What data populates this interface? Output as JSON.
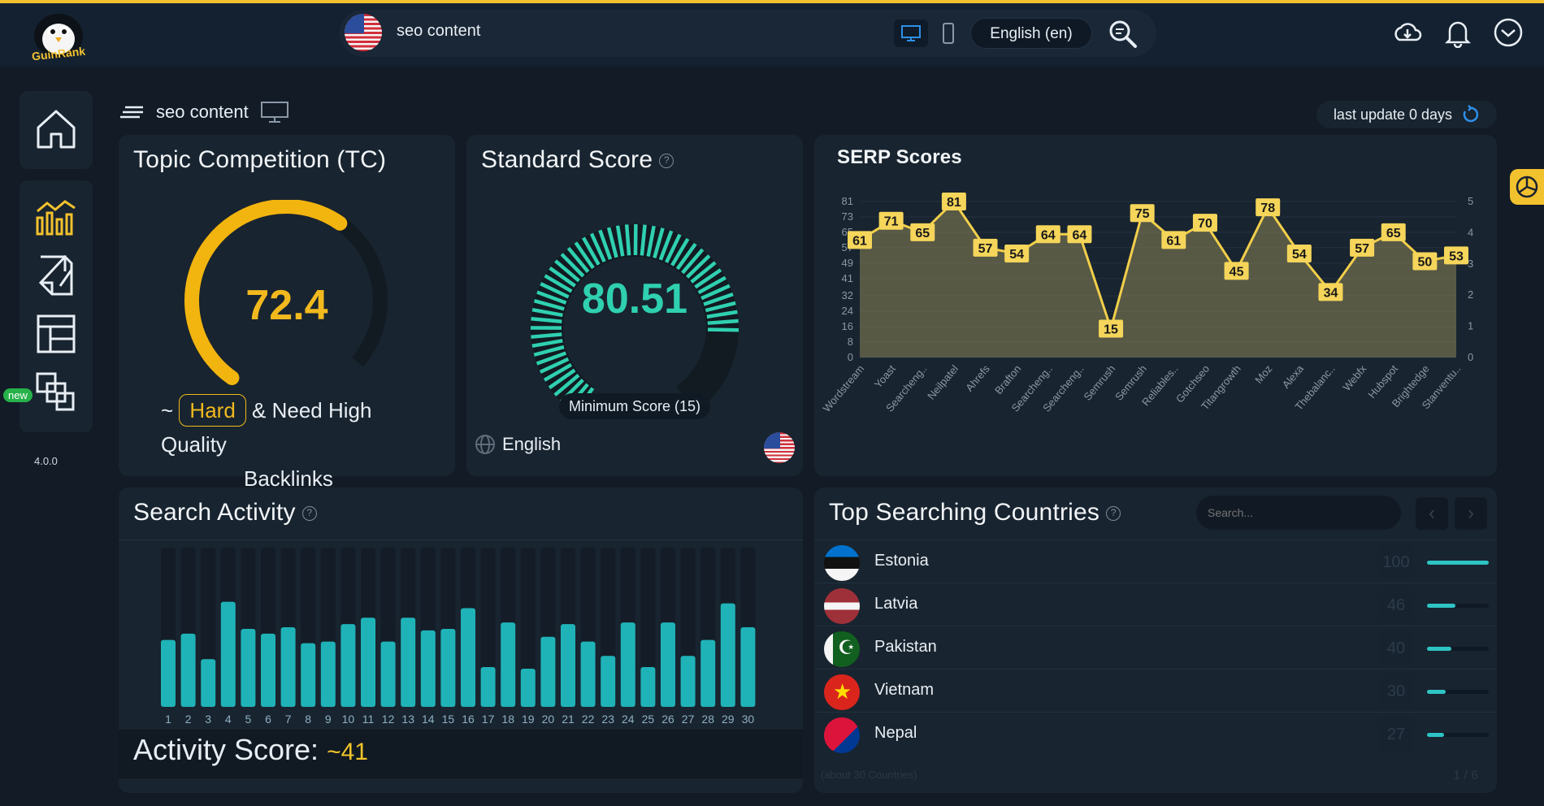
{
  "app": {
    "logo_text": "GuinRank",
    "version": "4.0.0",
    "new_badge": "new"
  },
  "header": {
    "keyword": "seo content",
    "language": "English (en)"
  },
  "breadcrumb": {
    "keyword": "seo content"
  },
  "last_update": {
    "label": "last update 0 days"
  },
  "topic_competition": {
    "title": "Topic Competition (TC)",
    "value": "72.4",
    "level": 0.724,
    "prefix": "~",
    "difficulty": "Hard",
    "note_line1": "& Need High Quality",
    "note_line2": "Backlinks"
  },
  "standard_score": {
    "title": "Standard Score",
    "value": "80.51",
    "level": 0.8051,
    "minimum_label": "Minimum Score (15)",
    "language": "English"
  },
  "serp_scores": {
    "title": "SERP Scores"
  },
  "search_activity": {
    "title": "Search Activity",
    "score_label": "Activity Score:",
    "score_value": "~41"
  },
  "top_countries": {
    "title": "Top Searching Countries",
    "search_placeholder": "Search...",
    "footer_left": "(about 30 Countries)",
    "footer_right": "1 / 6",
    "rows": [
      {
        "name": "Estonia",
        "value": "100",
        "fraction": 1.0
      },
      {
        "name": "Latvia",
        "value": "46",
        "fraction": 0.46
      },
      {
        "name": "Pakistan",
        "value": "40",
        "fraction": 0.4
      },
      {
        "name": "Vietnam",
        "value": "30",
        "fraction": 0.3
      },
      {
        "name": "Nepal",
        "value": "27",
        "fraction": 0.27
      }
    ]
  },
  "chart_data": [
    {
      "type": "area",
      "title": "SERP Scores",
      "categories": [
        "Wordstream",
        "Yoast",
        "Searcheng..",
        "Neilpatel",
        "Ahrefs",
        "Brafton",
        "Searcheng..",
        "Searcheng..",
        "Semrush",
        "Semrush",
        "Reliables..",
        "Gotchseo",
        "Titangrowth",
        "Moz",
        "Alexa",
        "Thebalanc..",
        "Webfx",
        "Hubspot",
        "Brightedge",
        "Stanventu.."
      ],
      "values": [
        61,
        71,
        65,
        81,
        57,
        54,
        64,
        64,
        15,
        75,
        61,
        70,
        45,
        78,
        54,
        34,
        57,
        65,
        50,
        53
      ],
      "y_ticks": [
        "0",
        "8",
        "16",
        "24",
        "32",
        "41",
        "49",
        "57",
        "65",
        "73",
        "81"
      ],
      "y2_ticks": [
        "0",
        "1",
        "2",
        "3",
        "4",
        "5"
      ],
      "ylim": [
        0,
        81
      ]
    },
    {
      "type": "bar",
      "title": "Search Activity",
      "categories": [
        "1",
        "2",
        "3",
        "4",
        "5",
        "6",
        "7",
        "8",
        "9",
        "10",
        "11",
        "12",
        "13",
        "14",
        "15",
        "16",
        "17",
        "18",
        "19",
        "20",
        "21",
        "22",
        "23",
        "24",
        "25",
        "26",
        "27",
        "28",
        "29",
        "30"
      ],
      "values": [
        42,
        46,
        30,
        66,
        49,
        46,
        50,
        40,
        41,
        52,
        56,
        41,
        56,
        48,
        49,
        62,
        25,
        53,
        24,
        44,
        52,
        41,
        32,
        53,
        25,
        53,
        32,
        42,
        65,
        50
      ],
      "ylim": [
        0,
        100
      ]
    }
  ],
  "colors": {
    "accent_yellow": "#f2c12e",
    "score_teal": "#2fd0b0",
    "bar_teal": "#1fb3b8"
  }
}
